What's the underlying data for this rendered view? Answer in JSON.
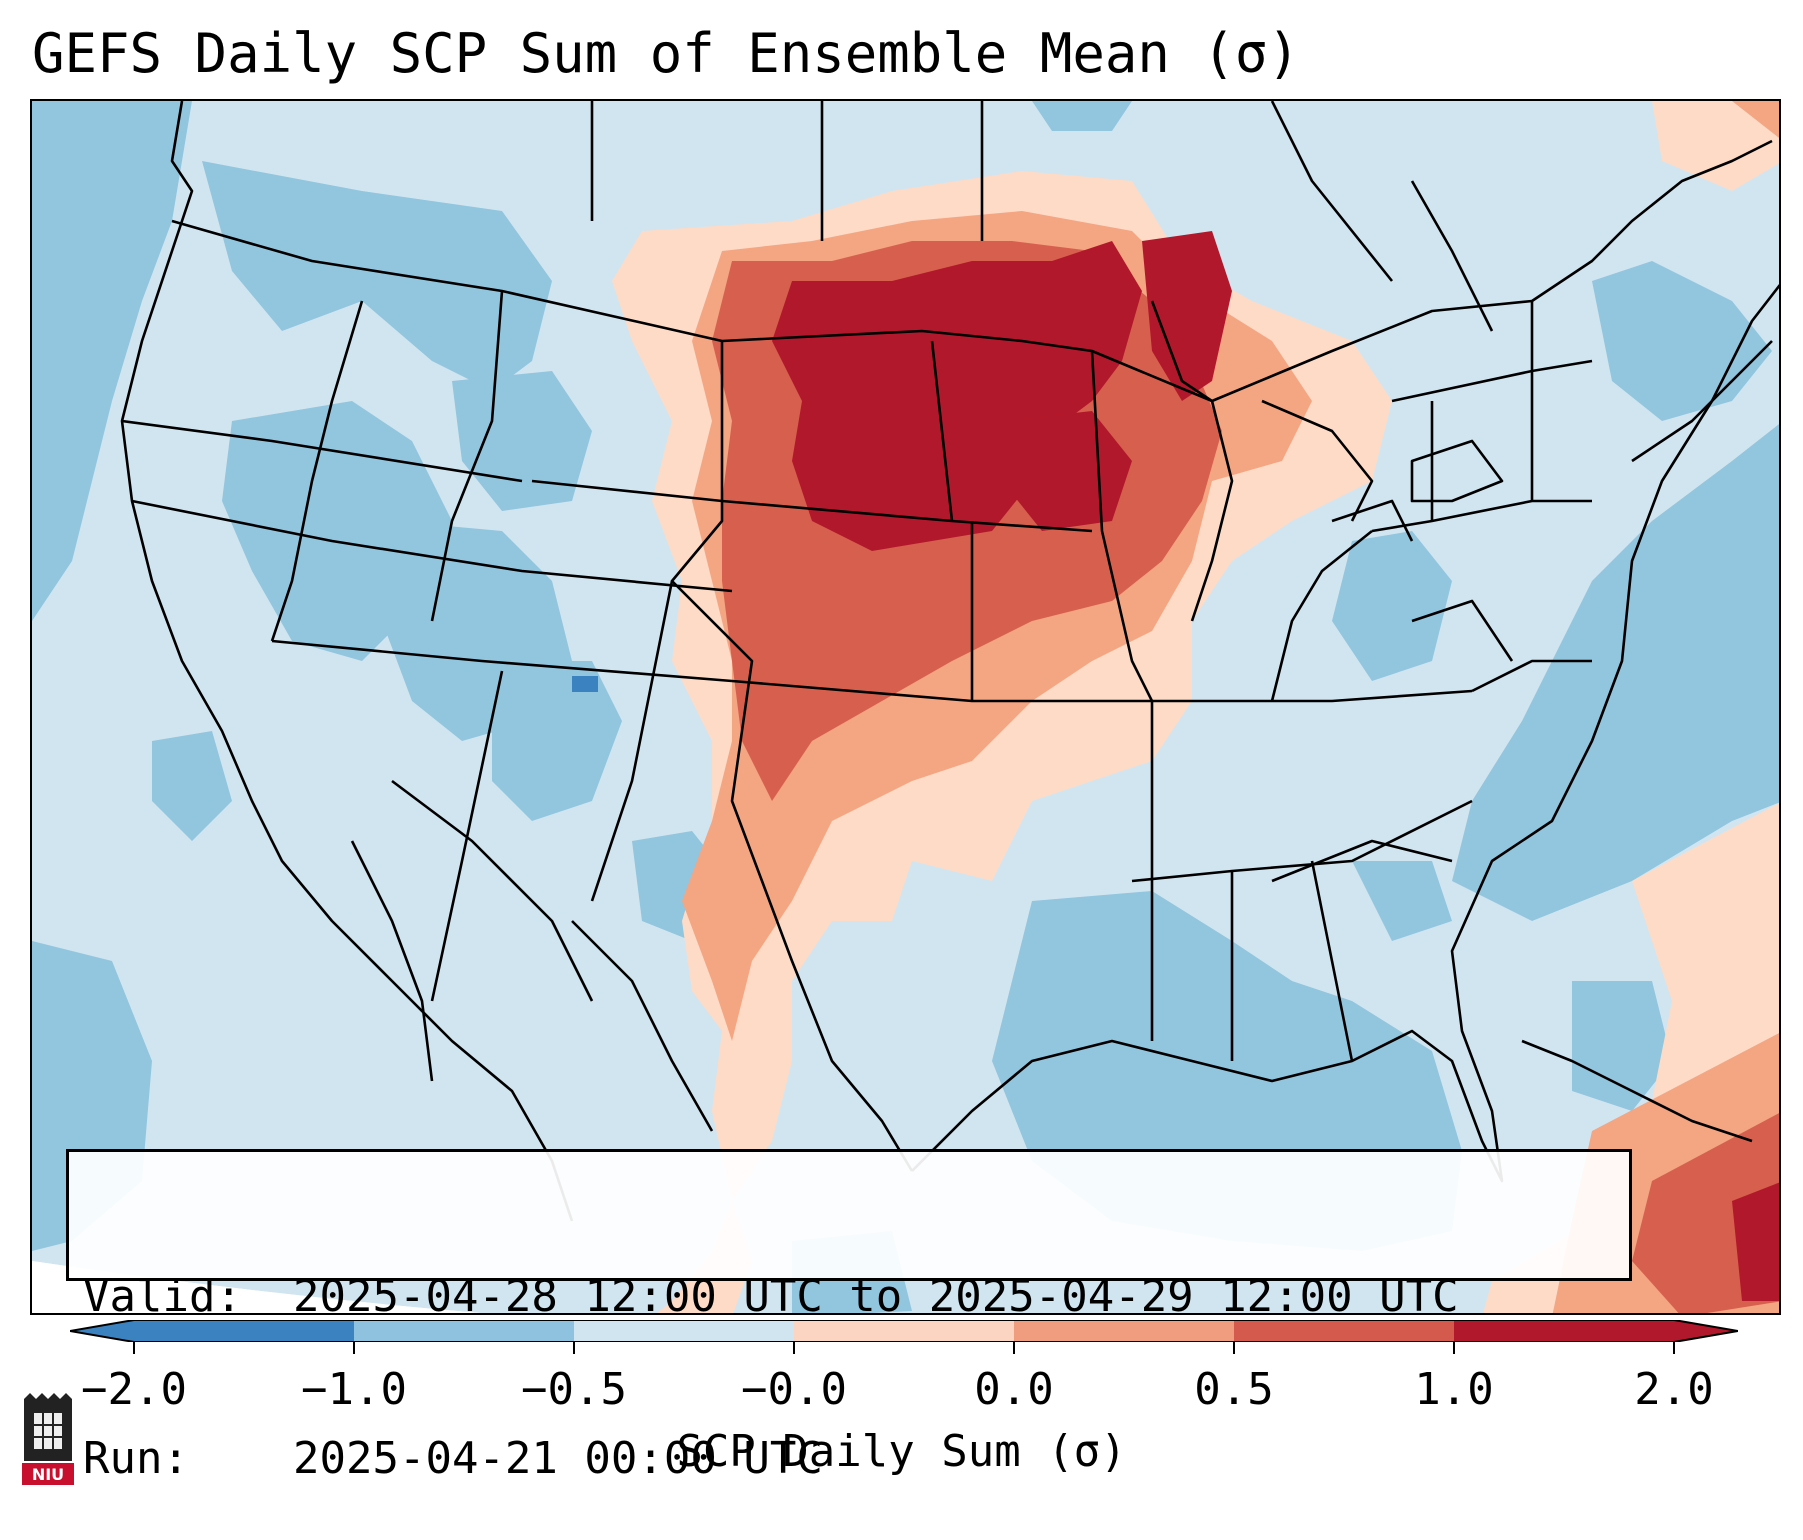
{
  "title": "GEFS Daily SCP Sum of Ensemble Mean (σ)",
  "info": {
    "valid_label": "Valid:",
    "valid_value": "2025-04-28 12:00 UTC to 2025-04-29 12:00 UTC",
    "run_label": "Run:",
    "run_value": "2025-04-21 00:00 UTC"
  },
  "colorbar": {
    "label": "SCP Daily Sum (σ)",
    "ticks": [
      "−2.0",
      "−1.0",
      "−0.5",
      "−0.0",
      "0.0",
      "0.5",
      "1.0",
      "2.0"
    ],
    "colors": [
      "#3a83c0",
      "#8fc2de",
      "#d1e5f0",
      "#d1e5f0",
      "#fbd5c2",
      "#f09c7f",
      "#d45a4e",
      "#b2182b"
    ],
    "extend": "both"
  },
  "legend_colors": {
    "very_low": "#3a83c0",
    "low": "#92c5de",
    "slightly_low": "#d1e5f0",
    "slightly_high": "#fddbc7",
    "high": "#f4a582",
    "very_high": "#d6604d",
    "extreme": "#b2182b"
  },
  "logo": {
    "text": "NIU",
    "color": "#c8102e",
    "icon": "university-tower-icon"
  }
}
